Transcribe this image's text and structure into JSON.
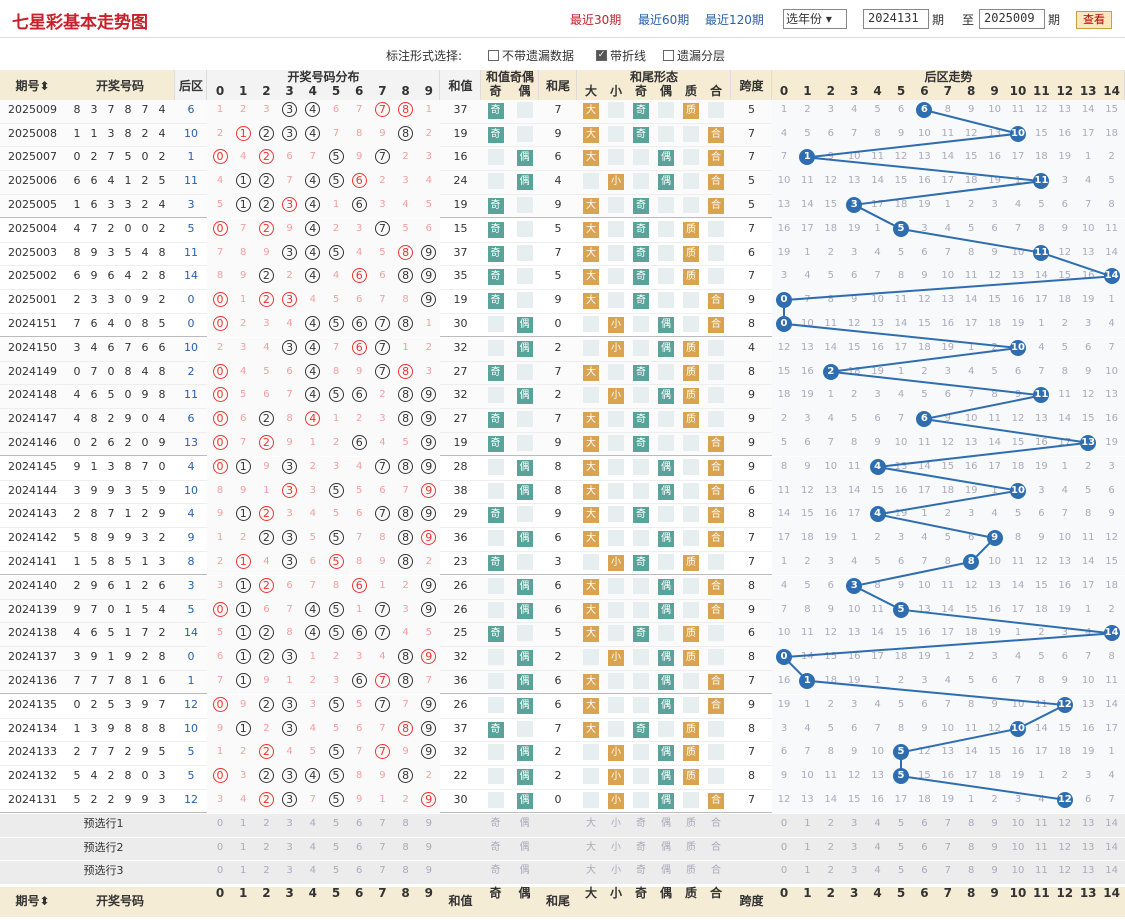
{
  "header": {
    "title": "七星彩基本走势图",
    "links": [
      "最近30期",
      "最近60期",
      "最近120期"
    ],
    "select_year": "选年份",
    "from_value": "2024131",
    "to_label": "至",
    "to_value": "2025009",
    "period_label": "期",
    "query_button": "查看"
  },
  "options": {
    "label": "标注形式选择:",
    "items": [
      {
        "label": "不带遗漏数据",
        "checked": false
      },
      {
        "label": "带折线",
        "checked": true
      },
      {
        "label": "遗漏分层",
        "checked": false
      }
    ]
  },
  "columns": {
    "issue": "期号",
    "numbers": "开奖号码",
    "back": "后区",
    "dist": "开奖号码分布",
    "sum": "和值",
    "sum_oe": "和值奇偶",
    "odd": "奇",
    "even": "偶",
    "tail": "和尾",
    "tail_form": "和尾形态",
    "big": "大",
    "small": "小",
    "prime": "质",
    "composite": "合",
    "span": "跨度",
    "back_trend": "后区走势"
  },
  "preselect": [
    "预选行1",
    "预选行2",
    "预选行3"
  ],
  "rows": [
    {
      "i": "2025009",
      "n": [
        8,
        3,
        7,
        8,
        7,
        4
      ],
      "b": 6,
      "s": 37,
      "t": 7,
      "k": 5
    },
    {
      "i": "2025008",
      "n": [
        1,
        1,
        3,
        8,
        2,
        4
      ],
      "b": 10,
      "s": 19,
      "t": 9,
      "k": 7
    },
    {
      "i": "2025007",
      "n": [
        0,
        2,
        7,
        5,
        0,
        2
      ],
      "b": 1,
      "s": 16,
      "t": 6,
      "k": 7
    },
    {
      "i": "2025006",
      "n": [
        6,
        6,
        4,
        1,
        2,
        5
      ],
      "b": 11,
      "s": 24,
      "t": 4,
      "k": 5
    },
    {
      "i": "2025005",
      "n": [
        1,
        6,
        3,
        3,
        2,
        4
      ],
      "b": 3,
      "s": 19,
      "t": 9,
      "k": 5
    },
    {
      "i": "2025004",
      "n": [
        4,
        7,
        2,
        0,
        0,
        2
      ],
      "b": 5,
      "s": 15,
      "t": 5,
      "k": 7
    },
    {
      "i": "2025003",
      "n": [
        8,
        9,
        3,
        5,
        4,
        8
      ],
      "b": 11,
      "s": 37,
      "t": 7,
      "k": 6
    },
    {
      "i": "2025002",
      "n": [
        6,
        9,
        6,
        4,
        2,
        8
      ],
      "b": 14,
      "s": 35,
      "t": 5,
      "k": 7
    },
    {
      "i": "2025001",
      "n": [
        2,
        3,
        3,
        0,
        9,
        2
      ],
      "b": 0,
      "s": 19,
      "t": 9,
      "k": 9
    },
    {
      "i": "2024151",
      "n": [
        7,
        6,
        4,
        0,
        8,
        5
      ],
      "b": 0,
      "s": 30,
      "t": 0,
      "k": 8
    },
    {
      "i": "2024150",
      "n": [
        3,
        4,
        6,
        7,
        6,
        6
      ],
      "b": 10,
      "s": 32,
      "t": 2,
      "k": 4
    },
    {
      "i": "2024149",
      "n": [
        0,
        7,
        0,
        8,
        4,
        8
      ],
      "b": 2,
      "s": 27,
      "t": 7,
      "k": 8
    },
    {
      "i": "2024148",
      "n": [
        4,
        6,
        5,
        0,
        9,
        8
      ],
      "b": 11,
      "s": 32,
      "t": 2,
      "k": 9
    },
    {
      "i": "2024147",
      "n": [
        4,
        8,
        2,
        9,
        0,
        4
      ],
      "b": 6,
      "s": 27,
      "t": 7,
      "k": 9
    },
    {
      "i": "2024146",
      "n": [
        0,
        2,
        6,
        2,
        0,
        9
      ],
      "b": 13,
      "s": 19,
      "t": 9,
      "k": 9
    },
    {
      "i": "2024145",
      "n": [
        9,
        1,
        3,
        8,
        7,
        0
      ],
      "b": 4,
      "s": 28,
      "t": 8,
      "k": 9
    },
    {
      "i": "2024144",
      "n": [
        3,
        9,
        9,
        3,
        5,
        9
      ],
      "b": 10,
      "s": 38,
      "t": 8,
      "k": 6
    },
    {
      "i": "2024143",
      "n": [
        2,
        8,
        7,
        1,
        2,
        9
      ],
      "b": 4,
      "s": 29,
      "t": 9,
      "k": 8
    },
    {
      "i": "2024142",
      "n": [
        5,
        8,
        9,
        9,
        3,
        2
      ],
      "b": 9,
      "s": 36,
      "t": 6,
      "k": 7
    },
    {
      "i": "2024141",
      "n": [
        1,
        5,
        8,
        5,
        1,
        3
      ],
      "b": 8,
      "s": 23,
      "t": 3,
      "k": 7
    },
    {
      "i": "2024140",
      "n": [
        2,
        9,
        6,
        1,
        2,
        6
      ],
      "b": 3,
      "s": 26,
      "t": 6,
      "k": 8
    },
    {
      "i": "2024139",
      "n": [
        9,
        7,
        0,
        1,
        5,
        4
      ],
      "b": 5,
      "s": 26,
      "t": 6,
      "k": 9
    },
    {
      "i": "2024138",
      "n": [
        4,
        6,
        5,
        1,
        7,
        2
      ],
      "b": 14,
      "s": 25,
      "t": 5,
      "k": 6
    },
    {
      "i": "2024137",
      "n": [
        3,
        9,
        1,
        9,
        2,
        8
      ],
      "b": 0,
      "s": 32,
      "t": 2,
      "k": 8
    },
    {
      "i": "2024136",
      "n": [
        7,
        7,
        7,
        8,
        1,
        6
      ],
      "b": 1,
      "s": 36,
      "t": 6,
      "k": 7
    },
    {
      "i": "2024135",
      "n": [
        0,
        2,
        5,
        3,
        9,
        7
      ],
      "b": 12,
      "s": 26,
      "t": 6,
      "k": 9
    },
    {
      "i": "2024134",
      "n": [
        1,
        3,
        9,
        8,
        8,
        8
      ],
      "b": 10,
      "s": 37,
      "t": 7,
      "k": 8
    },
    {
      "i": "2024133",
      "n": [
        2,
        7,
        7,
        2,
        9,
        5
      ],
      "b": 5,
      "s": 32,
      "t": 2,
      "k": 7
    },
    {
      "i": "2024132",
      "n": [
        5,
        4,
        2,
        8,
        0,
        3
      ],
      "b": 5,
      "s": 22,
      "t": 2,
      "k": 8
    },
    {
      "i": "2024131",
      "n": [
        5,
        2,
        2,
        9,
        9,
        3
      ],
      "b": 12,
      "s": 30,
      "t": 0,
      "k": 7
    }
  ]
}
